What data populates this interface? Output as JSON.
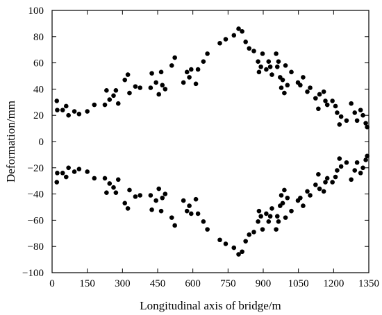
{
  "chart_data": {
    "type": "scatter",
    "title": "",
    "xlabel": "Longitudinal axis of bridge/m",
    "ylabel": "Deformation/mm",
    "xlim": [
      0,
      1350
    ],
    "ylim": [
      -100,
      100
    ],
    "x_ticks": [
      0,
      150,
      300,
      450,
      600,
      750,
      900,
      1050,
      1200,
      1350
    ],
    "y_ticks": [
      -100,
      -80,
      -60,
      -40,
      -20,
      0,
      20,
      40,
      60,
      80,
      100
    ],
    "grid": false,
    "legend": "none",
    "marker_color": "#000000",
    "series": [
      {
        "points": [
          [
            20,
            31
          ],
          [
            22,
            24
          ],
          [
            45,
            24
          ],
          [
            60,
            27
          ],
          [
            70,
            20
          ],
          [
            95,
            23
          ],
          [
            115,
            21
          ],
          [
            150,
            23
          ],
          [
            180,
            28
          ],
          [
            225,
            28
          ],
          [
            232,
            39
          ],
          [
            245,
            32
          ],
          [
            262,
            35
          ],
          [
            272,
            39
          ],
          [
            282,
            29
          ],
          [
            310,
            47
          ],
          [
            323,
            51
          ],
          [
            330,
            37
          ],
          [
            355,
            42
          ],
          [
            375,
            41
          ],
          [
            420,
            41
          ],
          [
            425,
            52
          ],
          [
            443,
            45
          ],
          [
            455,
            36
          ],
          [
            465,
            53
          ],
          [
            470,
            43
          ],
          [
            482,
            40
          ],
          [
            510,
            58
          ],
          [
            523,
            64
          ],
          [
            560,
            45
          ],
          [
            575,
            53
          ],
          [
            585,
            49
          ],
          [
            593,
            55
          ],
          [
            613,
            44
          ],
          [
            622,
            55
          ],
          [
            645,
            61
          ],
          [
            662,
            67
          ],
          [
            715,
            75
          ],
          [
            740,
            78
          ],
          [
            775,
            81
          ],
          [
            795,
            86
          ],
          [
            810,
            84
          ],
          [
            825,
            76
          ],
          [
            840,
            71
          ],
          [
            860,
            69
          ],
          [
            878,
            61
          ],
          [
            882,
            53
          ],
          [
            890,
            57
          ],
          [
            897,
            67
          ],
          [
            913,
            55
          ],
          [
            923,
            61
          ],
          [
            930,
            57
          ],
          [
            937,
            51
          ],
          [
            955,
            67
          ],
          [
            960,
            57
          ],
          [
            965,
            61
          ],
          [
            972,
            49
          ],
          [
            977,
            41
          ],
          [
            983,
            47
          ],
          [
            990,
            37
          ],
          [
            995,
            58
          ],
          [
            1003,
            43
          ],
          [
            1020,
            53
          ],
          [
            1048,
            45
          ],
          [
            1058,
            43
          ],
          [
            1070,
            49
          ],
          [
            1088,
            38
          ],
          [
            1100,
            41
          ],
          [
            1123,
            33
          ],
          [
            1135,
            25
          ],
          [
            1140,
            36
          ],
          [
            1158,
            38
          ],
          [
            1165,
            31
          ],
          [
            1173,
            28
          ],
          [
            1195,
            31
          ],
          [
            1208,
            27
          ],
          [
            1215,
            22
          ],
          [
            1225,
            13
          ],
          [
            1232,
            19
          ],
          [
            1255,
            16
          ],
          [
            1275,
            29
          ],
          [
            1290,
            22
          ],
          [
            1300,
            16
          ],
          [
            1315,
            24
          ],
          [
            1325,
            20
          ],
          [
            1337,
            14
          ],
          [
            1343,
            11
          ]
        ]
      },
      {
        "points": [
          [
            20,
            -31
          ],
          [
            22,
            -24
          ],
          [
            45,
            -24
          ],
          [
            60,
            -27
          ],
          [
            70,
            -20
          ],
          [
            95,
            -23
          ],
          [
            115,
            -21
          ],
          [
            150,
            -23
          ],
          [
            180,
            -28
          ],
          [
            225,
            -28
          ],
          [
            232,
            -39
          ],
          [
            245,
            -32
          ],
          [
            262,
            -35
          ],
          [
            272,
            -39
          ],
          [
            282,
            -29
          ],
          [
            310,
            -47
          ],
          [
            323,
            -51
          ],
          [
            330,
            -37
          ],
          [
            355,
            -42
          ],
          [
            375,
            -41
          ],
          [
            420,
            -41
          ],
          [
            425,
            -52
          ],
          [
            443,
            -45
          ],
          [
            455,
            -36
          ],
          [
            465,
            -53
          ],
          [
            470,
            -43
          ],
          [
            482,
            -40
          ],
          [
            510,
            -58
          ],
          [
            523,
            -64
          ],
          [
            560,
            -45
          ],
          [
            575,
            -53
          ],
          [
            585,
            -49
          ],
          [
            593,
            -55
          ],
          [
            613,
            -44
          ],
          [
            622,
            -55
          ],
          [
            645,
            -61
          ],
          [
            662,
            -67
          ],
          [
            715,
            -75
          ],
          [
            740,
            -78
          ],
          [
            775,
            -81
          ],
          [
            795,
            -86
          ],
          [
            810,
            -84
          ],
          [
            825,
            -76
          ],
          [
            840,
            -71
          ],
          [
            860,
            -69
          ],
          [
            878,
            -61
          ],
          [
            882,
            -53
          ],
          [
            890,
            -57
          ],
          [
            897,
            -67
          ],
          [
            913,
            -55
          ],
          [
            923,
            -61
          ],
          [
            930,
            -57
          ],
          [
            937,
            -51
          ],
          [
            955,
            -67
          ],
          [
            960,
            -57
          ],
          [
            965,
            -61
          ],
          [
            972,
            -49
          ],
          [
            977,
            -41
          ],
          [
            983,
            -47
          ],
          [
            990,
            -37
          ],
          [
            995,
            -58
          ],
          [
            1003,
            -43
          ],
          [
            1020,
            -53
          ],
          [
            1048,
            -45
          ],
          [
            1058,
            -43
          ],
          [
            1070,
            -49
          ],
          [
            1088,
            -38
          ],
          [
            1100,
            -41
          ],
          [
            1123,
            -33
          ],
          [
            1135,
            -25
          ],
          [
            1140,
            -36
          ],
          [
            1158,
            -38
          ],
          [
            1165,
            -31
          ],
          [
            1173,
            -28
          ],
          [
            1195,
            -31
          ],
          [
            1208,
            -27
          ],
          [
            1215,
            -22
          ],
          [
            1225,
            -13
          ],
          [
            1232,
            -19
          ],
          [
            1255,
            -16
          ],
          [
            1275,
            -29
          ],
          [
            1290,
            -22
          ],
          [
            1300,
            -16
          ],
          [
            1315,
            -24
          ],
          [
            1325,
            -20
          ],
          [
            1337,
            -14
          ],
          [
            1343,
            -11
          ]
        ]
      }
    ]
  }
}
